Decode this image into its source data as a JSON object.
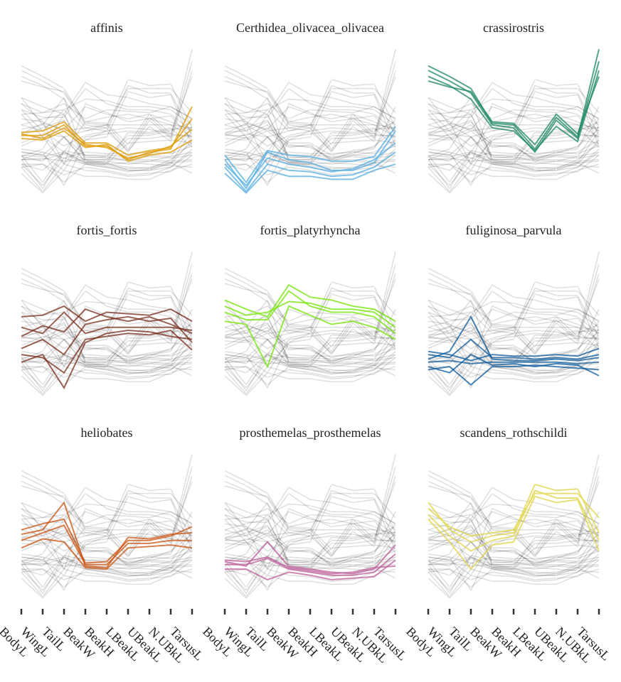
{
  "chart_data": {
    "type": "line",
    "subtype": "parallel-coordinates-facets",
    "axes": [
      "BodyL",
      "WingL",
      "TailL",
      "BeakW",
      "BeakH",
      "LBeakL",
      "UBeakL",
      "N.UBkL",
      "TarsusL"
    ],
    "ylim": [
      0,
      1
    ],
    "grid": false,
    "background_lines_color": "#000000",
    "panels": [
      {
        "title": "affinis",
        "color": "#E69F00",
        "lines": [
          [
            0.41,
            0.41,
            0.48,
            0.34,
            0.34,
            0.25,
            0.3,
            0.32,
            0.6
          ],
          [
            0.43,
            0.44,
            0.5,
            0.36,
            0.36,
            0.28,
            0.31,
            0.33,
            0.52
          ],
          [
            0.39,
            0.38,
            0.44,
            0.33,
            0.35,
            0.24,
            0.28,
            0.3,
            0.38
          ],
          [
            0.42,
            0.39,
            0.46,
            0.35,
            0.33,
            0.26,
            0.29,
            0.34,
            0.45
          ]
        ]
      },
      {
        "title": "Certhidea_olivacea_olivacea",
        "color": "#56B4E9",
        "lines": [
          [
            0.28,
            0.1,
            0.31,
            0.28,
            0.27,
            0.24,
            0.24,
            0.27,
            0.47
          ],
          [
            0.25,
            0.06,
            0.3,
            0.25,
            0.23,
            0.18,
            0.18,
            0.23,
            0.44
          ],
          [
            0.2,
            0.04,
            0.22,
            0.18,
            0.17,
            0.14,
            0.15,
            0.2,
            0.3
          ],
          [
            0.16,
            0.03,
            0.18,
            0.14,
            0.14,
            0.12,
            0.12,
            0.18,
            0.22
          ],
          [
            0.22,
            0.08,
            0.26,
            0.22,
            0.2,
            0.17,
            0.19,
            0.25,
            0.36
          ]
        ]
      },
      {
        "title": "crassirostris",
        "color": "#1B8A64",
        "lines": [
          [
            0.87,
            0.8,
            0.72,
            0.49,
            0.48,
            0.32,
            0.53,
            0.4,
            0.98
          ],
          [
            0.84,
            0.77,
            0.69,
            0.48,
            0.46,
            0.3,
            0.51,
            0.39,
            0.9
          ],
          [
            0.8,
            0.74,
            0.65,
            0.46,
            0.44,
            0.31,
            0.47,
            0.37,
            0.84
          ],
          [
            0.77,
            0.73,
            0.7,
            0.5,
            0.49,
            0.35,
            0.55,
            0.42,
            0.8
          ]
        ]
      },
      {
        "title": "fortis_fortis",
        "color": "#7A2E1C",
        "lines": [
          [
            0.48,
            0.44,
            0.58,
            0.44,
            0.48,
            0.48,
            0.48,
            0.48,
            0.46
          ],
          [
            0.34,
            0.4,
            0.3,
            0.5,
            0.53,
            0.55,
            0.52,
            0.54,
            0.38
          ],
          [
            0.55,
            0.56,
            0.62,
            0.52,
            0.58,
            0.57,
            0.56,
            0.6,
            0.52
          ],
          [
            0.3,
            0.28,
            0.18,
            0.4,
            0.42,
            0.44,
            0.43,
            0.46,
            0.33
          ],
          [
            0.42,
            0.49,
            0.45,
            0.6,
            0.55,
            0.52,
            0.55,
            0.5,
            0.44
          ],
          [
            0.25,
            0.3,
            0.08,
            0.38,
            0.44,
            0.46,
            0.45,
            0.42,
            0.4
          ]
        ]
      },
      {
        "title": "fortis_platyrhyncha",
        "color": "#76EE00",
        "lines": [
          [
            0.58,
            0.53,
            0.53,
            0.72,
            0.62,
            0.58,
            0.58,
            0.55,
            0.44
          ],
          [
            0.66,
            0.6,
            0.55,
            0.76,
            0.68,
            0.66,
            0.62,
            0.6,
            0.52
          ],
          [
            0.52,
            0.5,
            0.22,
            0.62,
            0.56,
            0.5,
            0.52,
            0.48,
            0.4
          ],
          [
            0.62,
            0.56,
            0.58,
            0.65,
            0.64,
            0.6,
            0.6,
            0.58,
            0.48
          ]
        ]
      },
      {
        "title": "fuliginosa_parvula",
        "color": "#0B5BA0",
        "lines": [
          [
            0.25,
            0.26,
            0.24,
            0.25,
            0.25,
            0.25,
            0.25,
            0.24,
            0.25
          ],
          [
            0.3,
            0.28,
            0.4,
            0.28,
            0.28,
            0.27,
            0.28,
            0.27,
            0.3
          ],
          [
            0.2,
            0.22,
            0.1,
            0.22,
            0.22,
            0.23,
            0.22,
            0.21,
            0.2
          ],
          [
            0.27,
            0.32,
            0.55,
            0.27,
            0.26,
            0.26,
            0.27,
            0.26,
            0.28
          ],
          [
            0.22,
            0.18,
            0.3,
            0.23,
            0.24,
            0.22,
            0.24,
            0.23,
            0.16
          ],
          [
            0.32,
            0.3,
            0.26,
            0.3,
            0.29,
            0.29,
            0.3,
            0.29,
            0.34
          ]
        ]
      },
      {
        "title": "heliobates",
        "color": "#D2540E",
        "lines": [
          [
            0.41,
            0.46,
            0.51,
            0.25,
            0.25,
            0.39,
            0.39,
            0.41,
            0.41
          ],
          [
            0.45,
            0.48,
            0.66,
            0.24,
            0.23,
            0.43,
            0.42,
            0.45,
            0.46
          ],
          [
            0.36,
            0.42,
            0.4,
            0.23,
            0.22,
            0.36,
            0.37,
            0.38,
            0.36
          ],
          [
            0.48,
            0.52,
            0.55,
            0.26,
            0.27,
            0.41,
            0.41,
            0.44,
            0.5
          ]
        ]
      },
      {
        "title": "prosthemelas_prosthemelas",
        "color": "#C4609E",
        "lines": [
          [
            0.25,
            0.25,
            0.29,
            0.22,
            0.2,
            0.18,
            0.18,
            0.2,
            0.32
          ],
          [
            0.27,
            0.24,
            0.4,
            0.24,
            0.22,
            0.2,
            0.19,
            0.22,
            0.38
          ],
          [
            0.22,
            0.22,
            0.15,
            0.2,
            0.18,
            0.15,
            0.16,
            0.17,
            0.28
          ],
          [
            0.28,
            0.27,
            0.3,
            0.23,
            0.21,
            0.19,
            0.2,
            0.23,
            0.24
          ]
        ]
      },
      {
        "title": "scandens_rothschildi",
        "color": "#E8DE4A",
        "lines": [
          [
            0.66,
            0.48,
            0.4,
            0.44,
            0.46,
            0.78,
            0.74,
            0.75,
            0.46
          ],
          [
            0.58,
            0.44,
            0.34,
            0.41,
            0.44,
            0.74,
            0.69,
            0.69,
            0.41
          ],
          [
            0.55,
            0.4,
            0.22,
            0.38,
            0.4,
            0.7,
            0.66,
            0.68,
            0.34
          ],
          [
            0.62,
            0.5,
            0.44,
            0.46,
            0.48,
            0.72,
            0.72,
            0.72,
            0.56
          ]
        ]
      }
    ]
  }
}
